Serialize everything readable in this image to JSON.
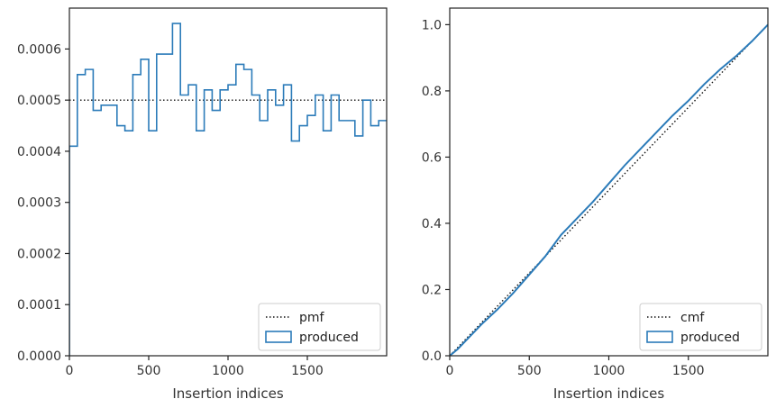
{
  "chart_data": [
    {
      "type": "line",
      "xlabel": "Insertion indices",
      "ylabel": "",
      "xlim": [
        0,
        2000
      ],
      "ylim": [
        0,
        0.00068
      ],
      "xticks": [
        0,
        500,
        1000,
        1500
      ],
      "yticks": [
        0,
        0.0001,
        0.0002,
        0.0003,
        0.0004,
        0.0005,
        0.0006
      ],
      "ytick_labels": [
        "0.0000",
        "0.0001",
        "0.0002",
        "0.0003",
        "0.0004",
        "0.0005",
        "0.0006"
      ],
      "grid": false,
      "legend_position": "bottom-right",
      "series": [
        {
          "name": "pmf",
          "style": "dotted",
          "color": "#111111",
          "x": [
            0,
            2000
          ],
          "y": [
            0.0005,
            0.0005
          ]
        },
        {
          "name": "produced",
          "style": "step-histogram",
          "color": "#2b7bb9",
          "bin_edges": [
            0,
            50,
            100,
            150,
            200,
            250,
            300,
            350,
            400,
            450,
            500,
            550,
            600,
            650,
            700,
            750,
            800,
            850,
            900,
            950,
            1000,
            1050,
            1100,
            1150,
            1200,
            1250,
            1300,
            1350,
            1400,
            1450,
            1500,
            1550,
            1600,
            1650,
            1700,
            1750,
            1800,
            1850,
            1900,
            1950,
            2000
          ],
          "values": [
            0.00041,
            0.00055,
            0.00056,
            0.00048,
            0.00049,
            0.00049,
            0.00045,
            0.00044,
            0.00055,
            0.00058,
            0.00044,
            0.00059,
            0.00059,
            0.00065,
            0.00051,
            0.00053,
            0.00044,
            0.00052,
            0.00048,
            0.00052,
            0.00053,
            0.00057,
            0.00056,
            0.00051,
            0.00046,
            0.00052,
            0.00049,
            0.00053,
            0.00042,
            0.00045,
            0.00047,
            0.00051,
            0.00044,
            0.00051,
            0.00046,
            0.00046,
            0.00043,
            0.0005,
            0.00045,
            0.00046
          ]
        }
      ]
    },
    {
      "type": "line",
      "xlabel": "Insertion indices",
      "ylabel": "",
      "xlim": [
        0,
        2000
      ],
      "ylim": [
        0,
        1.05
      ],
      "xticks": [
        0,
        500,
        1000,
        1500
      ],
      "yticks": [
        0,
        0.2,
        0.4,
        0.6,
        0.8,
        1.0
      ],
      "ytick_labels": [
        "0.0",
        "0.2",
        "0.4",
        "0.6",
        "0.8",
        "1.0"
      ],
      "grid": false,
      "legend_position": "bottom-right",
      "series": [
        {
          "name": "cmf",
          "style": "dotted",
          "color": "#111111",
          "x": [
            0,
            2000
          ],
          "y": [
            0,
            1
          ]
        },
        {
          "name": "produced",
          "style": "solid",
          "color": "#2b7bb9",
          "x": [
            0,
            50,
            100,
            200,
            300,
            400,
            500,
            600,
            700,
            800,
            900,
            1000,
            1100,
            1200,
            1300,
            1400,
            1500,
            1600,
            1700,
            1800,
            1900,
            2000
          ],
          "y": [
            0,
            0.02,
            0.045,
            0.095,
            0.14,
            0.19,
            0.245,
            0.3,
            0.365,
            0.415,
            0.465,
            0.52,
            0.575,
            0.625,
            0.675,
            0.725,
            0.77,
            0.82,
            0.865,
            0.905,
            0.95,
            1.0
          ]
        }
      ]
    }
  ]
}
